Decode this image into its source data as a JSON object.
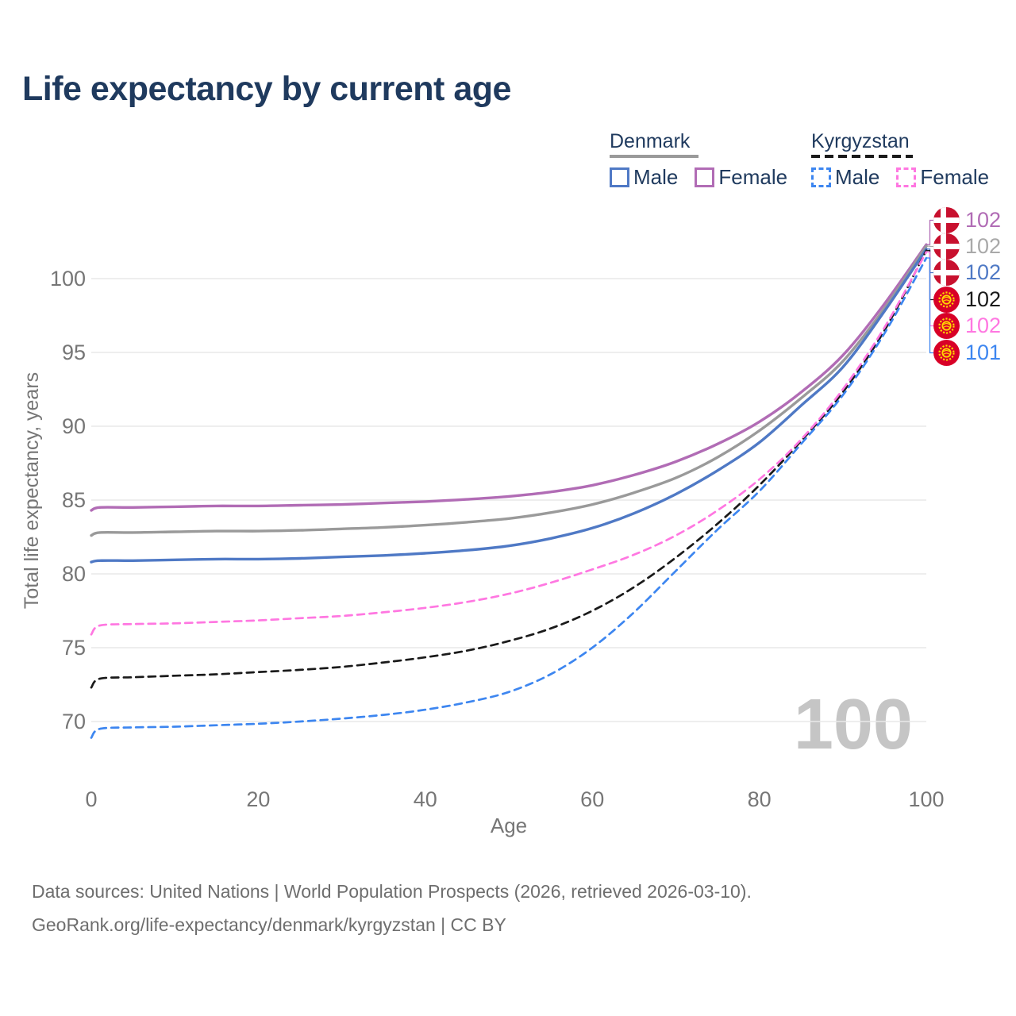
{
  "title": "Life expectancy by current age",
  "legend": {
    "groups": [
      {
        "name": "Denmark",
        "line_style": "solid",
        "underline_color": "#9a9a9a",
        "items": [
          {
            "label": "Male",
            "color": "#4f79c5",
            "dashed": false
          },
          {
            "label": "Female",
            "color": "#b16cb5",
            "dashed": false
          }
        ]
      },
      {
        "name": "Kyrgyzstan",
        "line_style": "dashed",
        "underline_color": "#1a1a1a",
        "items": [
          {
            "label": "Male",
            "color": "#3d86f0",
            "dashed": true
          },
          {
            "label": "Female",
            "color": "#ff77e1",
            "dashed": true
          }
        ]
      }
    ]
  },
  "watermark_age": "100",
  "end_labels": [
    {
      "flag": "denmark",
      "value": "102",
      "color": "#b16cb5"
    },
    {
      "flag": "denmark",
      "value": "102",
      "color": "#a9a9a9"
    },
    {
      "flag": "denmark",
      "value": "102",
      "color": "#4f79c5"
    },
    {
      "flag": "kyrgyzstan",
      "value": "102",
      "color": "#1a1a1a"
    },
    {
      "flag": "kyrgyzstan",
      "value": "102",
      "color": "#ff77e1"
    },
    {
      "flag": "kyrgyzstan",
      "value": "101",
      "color": "#3d86f0"
    }
  ],
  "footer": {
    "line1": "Data sources: United Nations | World Population Prospects (2026, retrieved 2026-03-10).",
    "line2": "GeoRank.org/life-expectancy/denmark/kyrgyzstan | CC BY"
  },
  "chart_data": {
    "type": "line",
    "title": "Life expectancy by current age",
    "xlabel": "Age",
    "ylabel": "Total life expectancy, years",
    "xlim": [
      0,
      100
    ],
    "ylim": [
      67,
      103
    ],
    "xticks": [
      0,
      20,
      40,
      60,
      80,
      100
    ],
    "yticks": [
      70,
      75,
      80,
      85,
      90,
      95,
      100
    ],
    "grid": "horizontal",
    "legend_position": "top-right",
    "x": [
      0,
      1,
      5,
      10,
      15,
      20,
      25,
      30,
      35,
      40,
      45,
      50,
      55,
      60,
      65,
      70,
      75,
      80,
      85,
      90,
      95,
      100
    ],
    "series": [
      {
        "id": "denmark-female",
        "name": "Denmark Female",
        "country": "Denmark",
        "sex": "Female",
        "color": "#b16cb5",
        "dash": false,
        "end_label": "102",
        "values": [
          84.3,
          84.5,
          84.5,
          84.55,
          84.6,
          84.6,
          84.65,
          84.7,
          84.8,
          84.9,
          85.05,
          85.25,
          85.55,
          86.0,
          86.7,
          87.6,
          88.8,
          90.3,
          92.3,
          94.8,
          98.3,
          102.3
        ]
      },
      {
        "id": "denmark-both",
        "name": "Denmark Both sexes",
        "country": "Denmark",
        "sex": "Both sexes",
        "color": "#9a9a9a",
        "dash": false,
        "end_label": "102",
        "values": [
          82.6,
          82.8,
          82.8,
          82.85,
          82.9,
          82.9,
          82.95,
          83.05,
          83.15,
          83.3,
          83.5,
          83.75,
          84.15,
          84.7,
          85.5,
          86.5,
          87.9,
          89.7,
          91.9,
          94.4,
          98.0,
          102.2
        ]
      },
      {
        "id": "denmark-male",
        "name": "Denmark Male",
        "country": "Denmark",
        "sex": "Male",
        "color": "#4f79c5",
        "dash": false,
        "end_label": "102",
        "values": [
          80.8,
          80.9,
          80.9,
          80.95,
          81.0,
          81.0,
          81.05,
          81.15,
          81.25,
          81.4,
          81.6,
          81.9,
          82.4,
          83.1,
          84.1,
          85.4,
          87.0,
          88.9,
          91.4,
          94.0,
          97.8,
          102.0
        ]
      },
      {
        "id": "kyrgyzstan-both",
        "name": "Kyrgyzstan Both sexes",
        "country": "Kyrgyzstan",
        "sex": "Both sexes",
        "color": "#1a1a1a",
        "dash": true,
        "end_label": "102",
        "values": [
          72.3,
          72.9,
          73.0,
          73.1,
          73.2,
          73.35,
          73.5,
          73.7,
          74.0,
          74.35,
          74.8,
          75.45,
          76.3,
          77.5,
          79.1,
          81.1,
          83.4,
          86.0,
          89.0,
          92.3,
          96.5,
          101.9
        ]
      },
      {
        "id": "kyrgyzstan-female",
        "name": "Kyrgyzstan Female",
        "country": "Kyrgyzstan",
        "sex": "Female",
        "color": "#ff77e1",
        "dash": true,
        "end_label": "102",
        "values": [
          75.9,
          76.5,
          76.6,
          76.65,
          76.75,
          76.85,
          77.0,
          77.15,
          77.4,
          77.7,
          78.1,
          78.65,
          79.4,
          80.3,
          81.3,
          82.6,
          84.3,
          86.4,
          89.1,
          92.5,
          96.7,
          101.8
        ]
      },
      {
        "id": "kyrgyzstan-male",
        "name": "Kyrgyzstan Male",
        "country": "Kyrgyzstan",
        "sex": "Male",
        "color": "#3d86f0",
        "dash": true,
        "end_label": "101",
        "values": [
          68.9,
          69.5,
          69.6,
          69.65,
          69.75,
          69.85,
          70.0,
          70.2,
          70.45,
          70.8,
          71.3,
          72.0,
          73.2,
          75.0,
          77.4,
          80.2,
          83.0,
          85.6,
          88.8,
          92.1,
          96.3,
          101.4
        ]
      }
    ]
  }
}
